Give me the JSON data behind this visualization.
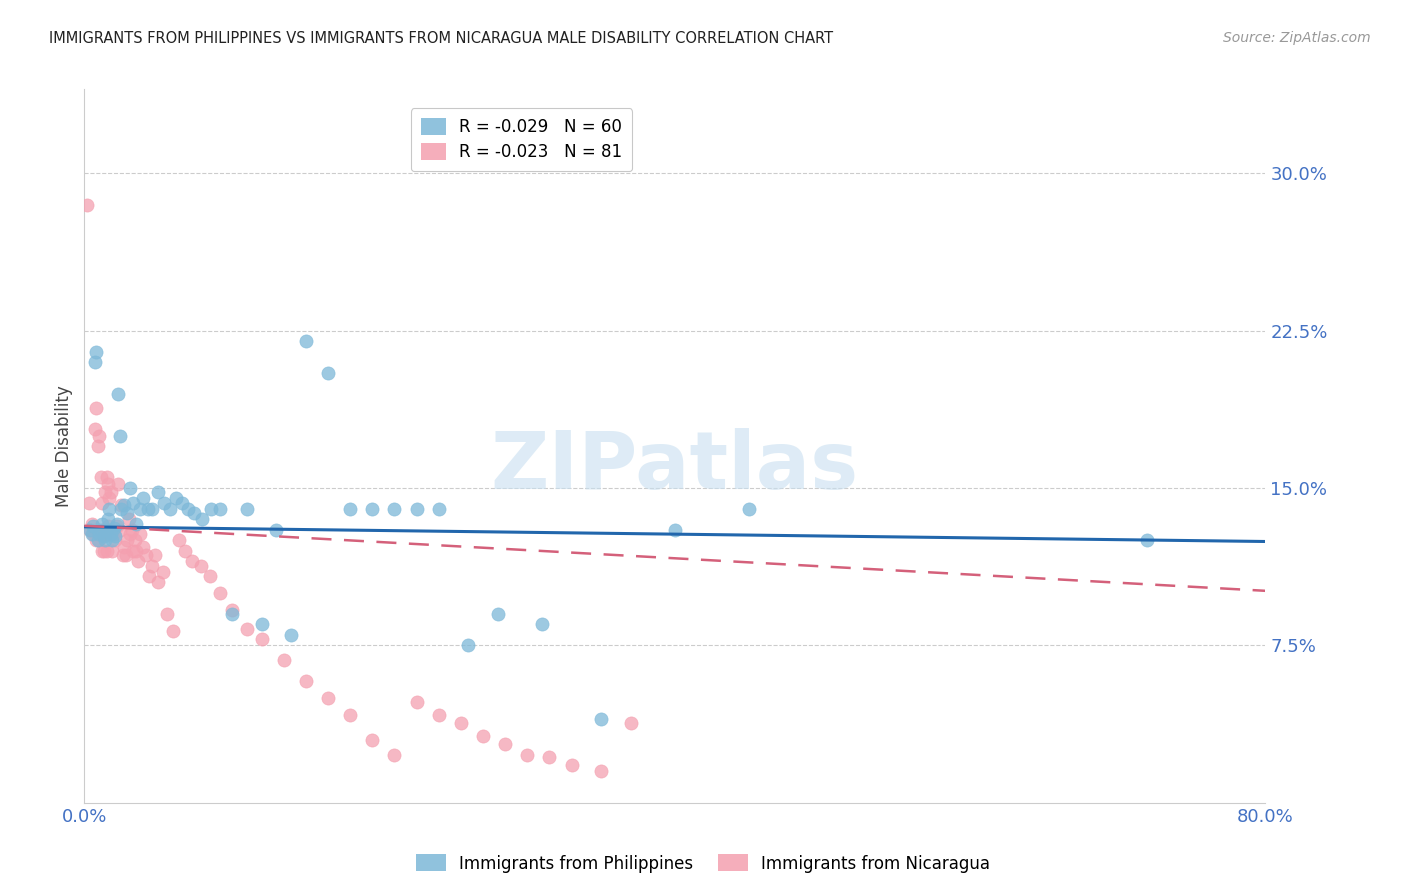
{
  "title": "IMMIGRANTS FROM PHILIPPINES VS IMMIGRANTS FROM NICARAGUA MALE DISABILITY CORRELATION CHART",
  "source": "Source: ZipAtlas.com",
  "ylabel": "Male Disability",
  "watermark_text": "ZIPatlas",
  "watermark_color": "#c8dff0",
  "philippines_color": "#7db8d8",
  "nicaragua_color": "#f4a0b0",
  "philippines_line_color": "#2166ac",
  "nicaragua_line_color": "#d4607a",
  "background_color": "#ffffff",
  "grid_color": "#cccccc",
  "right_tick_color": "#4472c4",
  "legend_r1": "R = -0.029",
  "legend_n1": "N = 60",
  "legend_r2": "R = -0.023",
  "legend_n2": "N = 81",
  "legend_label1": "Immigrants from Philippines",
  "legend_label2": "Immigrants from Nicaragua",
  "xlim": [
    0.0,
    0.8
  ],
  "ylim": [
    0.0,
    0.34
  ],
  "yticks": [
    0.075,
    0.15,
    0.225,
    0.3
  ],
  "ytick_labels": [
    "7.5%",
    "15.0%",
    "22.5%",
    "30.0%"
  ],
  "phil_x": [
    0.004,
    0.005,
    0.006,
    0.007,
    0.008,
    0.009,
    0.01,
    0.011,
    0.012,
    0.013,
    0.014,
    0.015,
    0.016,
    0.017,
    0.018,
    0.019,
    0.02,
    0.021,
    0.022,
    0.023,
    0.024,
    0.025,
    0.027,
    0.029,
    0.031,
    0.033,
    0.035,
    0.038,
    0.04,
    0.043,
    0.046,
    0.05,
    0.054,
    0.058,
    0.062,
    0.066,
    0.07,
    0.074,
    0.08,
    0.086,
    0.092,
    0.1,
    0.11,
    0.12,
    0.13,
    0.14,
    0.15,
    0.165,
    0.18,
    0.195,
    0.21,
    0.225,
    0.24,
    0.26,
    0.28,
    0.31,
    0.35,
    0.4,
    0.45,
    0.72
  ],
  "phil_y": [
    0.13,
    0.128,
    0.132,
    0.21,
    0.215,
    0.125,
    0.128,
    0.13,
    0.133,
    0.127,
    0.125,
    0.13,
    0.135,
    0.14,
    0.128,
    0.125,
    0.131,
    0.127,
    0.133,
    0.195,
    0.175,
    0.14,
    0.142,
    0.138,
    0.15,
    0.143,
    0.133,
    0.14,
    0.145,
    0.14,
    0.14,
    0.148,
    0.143,
    0.14,
    0.145,
    0.143,
    0.14,
    0.138,
    0.135,
    0.14,
    0.14,
    0.09,
    0.14,
    0.085,
    0.13,
    0.08,
    0.22,
    0.205,
    0.14,
    0.14,
    0.14,
    0.14,
    0.14,
    0.075,
    0.09,
    0.085,
    0.04,
    0.13,
    0.14,
    0.125
  ],
  "nica_x": [
    0.002,
    0.003,
    0.004,
    0.005,
    0.006,
    0.007,
    0.007,
    0.008,
    0.008,
    0.009,
    0.009,
    0.01,
    0.01,
    0.011,
    0.011,
    0.012,
    0.012,
    0.013,
    0.013,
    0.014,
    0.014,
    0.015,
    0.015,
    0.016,
    0.016,
    0.017,
    0.018,
    0.018,
    0.019,
    0.02,
    0.021,
    0.022,
    0.023,
    0.024,
    0.025,
    0.026,
    0.027,
    0.028,
    0.029,
    0.03,
    0.031,
    0.032,
    0.033,
    0.034,
    0.035,
    0.036,
    0.038,
    0.04,
    0.042,
    0.044,
    0.046,
    0.048,
    0.05,
    0.053,
    0.056,
    0.06,
    0.064,
    0.068,
    0.073,
    0.079,
    0.085,
    0.092,
    0.1,
    0.11,
    0.12,
    0.135,
    0.15,
    0.165,
    0.18,
    0.195,
    0.21,
    0.225,
    0.24,
    0.255,
    0.27,
    0.285,
    0.3,
    0.315,
    0.33,
    0.35,
    0.37
  ],
  "nica_y": [
    0.285,
    0.143,
    0.13,
    0.133,
    0.128,
    0.13,
    0.178,
    0.188,
    0.125,
    0.13,
    0.17,
    0.175,
    0.125,
    0.128,
    0.155,
    0.143,
    0.12,
    0.12,
    0.13,
    0.128,
    0.148,
    0.155,
    0.12,
    0.152,
    0.132,
    0.145,
    0.13,
    0.148,
    0.12,
    0.128,
    0.125,
    0.132,
    0.152,
    0.13,
    0.142,
    0.118,
    0.122,
    0.118,
    0.125,
    0.135,
    0.128,
    0.13,
    0.12,
    0.125,
    0.12,
    0.115,
    0.128,
    0.122,
    0.118,
    0.108,
    0.113,
    0.118,
    0.105,
    0.11,
    0.09,
    0.082,
    0.125,
    0.12,
    0.115,
    0.113,
    0.108,
    0.1,
    0.092,
    0.083,
    0.078,
    0.068,
    0.058,
    0.05,
    0.042,
    0.03,
    0.023,
    0.048,
    0.042,
    0.038,
    0.032,
    0.028,
    0.023,
    0.022,
    0.018,
    0.015,
    0.038
  ],
  "phil_line_x": [
    0.0,
    0.8
  ],
  "phil_line_y": [
    0.1315,
    0.1245
  ],
  "nica_line_x": [
    0.0,
    0.8
  ],
  "nica_line_y": [
    0.132,
    0.101
  ]
}
